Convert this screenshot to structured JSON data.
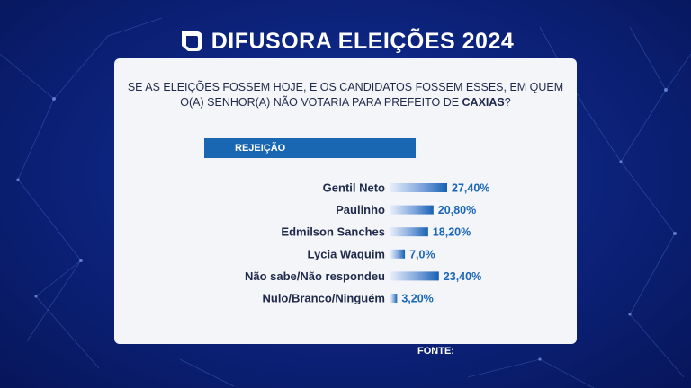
{
  "header": {
    "title": "DIFUSORA ELEIÇÕES 2024",
    "logo_icon": "difusora-logo-icon"
  },
  "question": {
    "line1": "SE AS ELEIÇÕES FOSSEM HOJE, E OS CANDIDATOS FOSSEM ESSES, EM QUEM",
    "line2_prefix": "O(A) SENHOR(A) NÃO VOTARIA PARA PREFEITO DE ",
    "city": "CAXIAS",
    "line2_suffix": "?"
  },
  "tag_label": "REJEIÇÃO",
  "source_label": "FONTE:",
  "colors": {
    "accent": "#1966b3",
    "background": "#0d2580",
    "panel": "#f4f5f9",
    "label": "#1f2a4a",
    "value": "#1a66b8"
  },
  "chart_data": {
    "type": "bar",
    "orientation": "horizontal",
    "categories": [
      "Gentil Neto",
      "Paulinho",
      "Edmilson Sanches",
      "Lycia Waquim",
      "Não sabe/Não respondeu",
      "Nulo/Branco/Ninguém"
    ],
    "values": [
      27.4,
      20.8,
      18.2,
      7.0,
      23.4,
      3.2
    ],
    "value_labels": [
      "27,40%",
      "20,80%",
      "18,20%",
      "7,0%",
      "23,40%",
      "3,20%"
    ],
    "title": "REJEIÇÃO",
    "xlim": [
      0,
      27.4
    ]
  }
}
